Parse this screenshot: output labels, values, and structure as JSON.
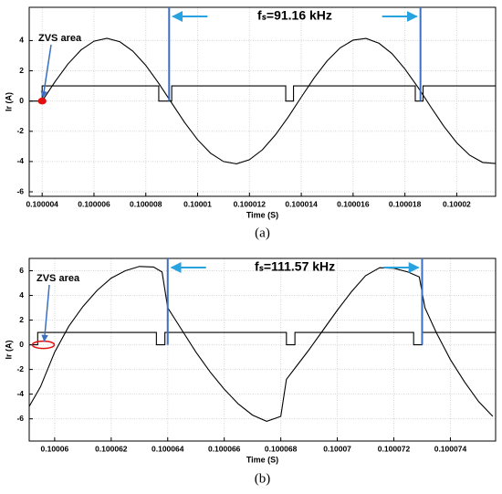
{
  "chart_data": [
    {
      "type": "line",
      "caption": "(a)",
      "xlabel": "Time (S)",
      "ylabel": "Ir (A)",
      "annotation": "fₛ=91.16 kHz",
      "zvs_label": "ZVS area",
      "grid": true,
      "xlim": [
        0.1000035,
        0.1000215
      ],
      "ylim": [
        -6.3,
        6.2
      ],
      "xticks": [
        0.100004,
        0.100006,
        0.100008,
        0.10001,
        0.100012,
        0.100014,
        0.100016,
        0.100018,
        0.10002
      ],
      "yticks": [
        -6,
        -4,
        -2,
        0,
        2,
        4
      ],
      "markers": [
        0.1000089,
        0.1000186
      ],
      "marker_color": "#3b6fc0",
      "arrow_color": "#29a3e0",
      "zvs_point": {
        "x": 0.100004,
        "y": 0
      },
      "zvs_color": "#e01010",
      "series": [
        {
          "color": "#000000",
          "x": [
            0.100004,
            0.1000045,
            0.100005,
            0.1000055,
            0.100006,
            0.1000065,
            0.100007,
            0.1000075,
            0.100008,
            0.1000085,
            0.100009,
            0.1000095,
            0.10001,
            0.1000105,
            0.100011,
            0.1000115,
            0.100012,
            0.1000125,
            0.100013,
            0.1000135,
            0.100014,
            0.1000145,
            0.100015,
            0.1000155,
            0.100016,
            0.1000165,
            0.100017,
            0.1000175,
            0.100018,
            0.1000185,
            0.100019,
            0.1000195,
            0.10002,
            0.1000205,
            0.100021,
            0.1000215
          ],
          "values": [
            0,
            1.29,
            2.46,
            3.38,
            3.96,
            4.15,
            3.92,
            3.3,
            2.36,
            1.17,
            -0.13,
            -1.42,
            -2.56,
            -3.45,
            -4,
            -4.15,
            -3.88,
            -3.22,
            -2.24,
            -1.05,
            0.26,
            1.54,
            2.66,
            3.52,
            4.03,
            4.14,
            3.82,
            3.14,
            2.12,
            0.92,
            -0.39,
            -1.66,
            -2.76,
            -3.58,
            -4.06,
            -4.13
          ]
        },
        {
          "color": "#000000",
          "x": [
            0.1000035,
            0.100004,
            0.100004,
            0.1000085,
            0.1000085,
            0.100009,
            0.100009,
            0.1000134,
            0.1000134,
            0.1000137,
            0.1000137,
            0.1000184,
            0.1000184,
            0.1000187,
            0.1000187,
            0.1000215
          ],
          "values": [
            0,
            0,
            1,
            1,
            0,
            0,
            1,
            1,
            0,
            0,
            1,
            1,
            0,
            0,
            1,
            1
          ]
        }
      ]
    },
    {
      "type": "line",
      "caption": "(b)",
      "xlabel": "Time (S)",
      "ylabel": "Ir (A)",
      "annotation": "fₛ=111.57 kHz",
      "zvs_label": "ZVS area",
      "grid": true,
      "xlim": [
        0.1000591,
        0.1000756
      ],
      "ylim": [
        -7.8,
        7
      ],
      "xticks": [
        0.10006,
        0.100062,
        0.100064,
        0.100066,
        0.100068,
        0.10007,
        0.100072,
        0.100074
      ],
      "yticks": [
        -6,
        -4,
        -2,
        0,
        2,
        4,
        6
      ],
      "markers": [
        0.100064,
        0.100073
      ],
      "marker_color": "#3b6fc0",
      "arrow_color": "#29a3e0",
      "zvs_point": {
        "x": 0.1000596,
        "y": 0
      },
      "zvs_color": "#e01010",
      "series": [
        {
          "color": "#000000",
          "x": [
            0.1000591,
            0.1000595,
            0.10006,
            0.1000605,
            0.100061,
            0.1000615,
            0.100062,
            0.1000625,
            0.100063,
            0.1000635,
            0.1000638,
            0.100064,
            0.1000645,
            0.100065,
            0.1000655,
            0.100066,
            0.1000665,
            0.100067,
            0.1000675,
            0.100068,
            0.1000682,
            0.1000685,
            0.100069,
            0.1000695,
            0.10007,
            0.1000705,
            0.100071,
            0.1000715,
            0.100072,
            0.1000725,
            0.1000729,
            0.1000731,
            0.1000735,
            0.100074,
            0.1000745,
            0.100075,
            0.1000755
          ],
          "values": [
            -5,
            -3.4,
            -0.6,
            1.5,
            3.1,
            4.4,
            5.4,
            6,
            6.35,
            6.3,
            5.9,
            3,
            1.2,
            -0.6,
            -2.2,
            -3.6,
            -4.8,
            -5.7,
            -6.2,
            -5.8,
            -2.8,
            -1.9,
            -0.4,
            1.2,
            2.8,
            4.3,
            5.6,
            6.25,
            6.2,
            5.9,
            5.5,
            3,
            1,
            -1.2,
            -3,
            -4.6,
            -5.8
          ]
        },
        {
          "color": "#000000",
          "x": [
            0.1000591,
            0.1000594,
            0.1000594,
            0.1000636,
            0.1000636,
            0.1000639,
            0.1000639,
            0.1000682,
            0.1000682,
            0.1000685,
            0.1000685,
            0.1000727,
            0.1000727,
            0.100073,
            0.100073,
            0.1000756
          ],
          "values": [
            0,
            0,
            1,
            1,
            0,
            0,
            1,
            1,
            0,
            0,
            1,
            1,
            0,
            0,
            1,
            1
          ]
        }
      ]
    }
  ]
}
